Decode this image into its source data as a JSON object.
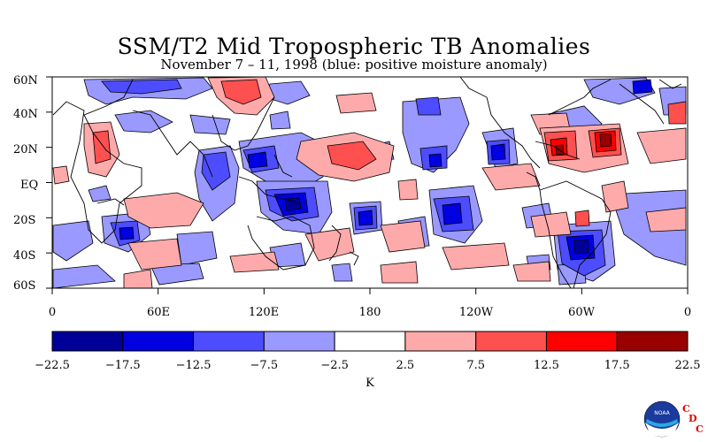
{
  "title": "SSM/T2 Mid Tropospheric TB Anomalies",
  "subtitle": "November 7 – 11, 1998 (blue: positive moisture anomaly)",
  "lat_labels": [
    "60N",
    "40N",
    "20N",
    "EQ",
    "20S",
    "40S",
    "60S"
  ],
  "lon_labels": [
    "0",
    "60E",
    "120E",
    "180",
    "120W",
    "60W",
    "0"
  ],
  "colorbar": {
    "colors": [
      "#000099",
      "#0000e0",
      "#4d4dff",
      "#9999ff",
      "#ffffff",
      "#ffaaaa",
      "#ff5050",
      "#ff0000",
      "#990000"
    ],
    "levels": [
      "−22.5",
      "−17.5",
      "−12.5",
      "−7.5",
      "−2.5",
      "2.5",
      "7.5",
      "12.5",
      "17.5",
      "22.5"
    ],
    "unit": "K"
  },
  "logo": {
    "text": "NOAA",
    "cdc_letters": [
      "C",
      "D",
      "C"
    ]
  }
}
